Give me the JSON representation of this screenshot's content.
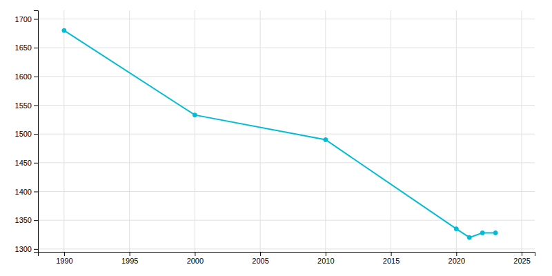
{
  "chart_data": {
    "type": "line",
    "x": [
      1990,
      2000,
      2010,
      2020,
      2021,
      2022,
      2023
    ],
    "values": [
      1680,
      1533,
      1490,
      1335,
      1320,
      1328,
      1328
    ],
    "color": "#00bcd4",
    "marker": "circle",
    "xlim": [
      1988,
      2026
    ],
    "ylim": [
      1295,
      1715
    ],
    "xticks": [
      1990,
      1995,
      2000,
      2005,
      2010,
      2015,
      2020,
      2025
    ],
    "yticks": [
      1300,
      1350,
      1400,
      1450,
      1500,
      1550,
      1600,
      1650,
      1700
    ],
    "grid": true
  }
}
